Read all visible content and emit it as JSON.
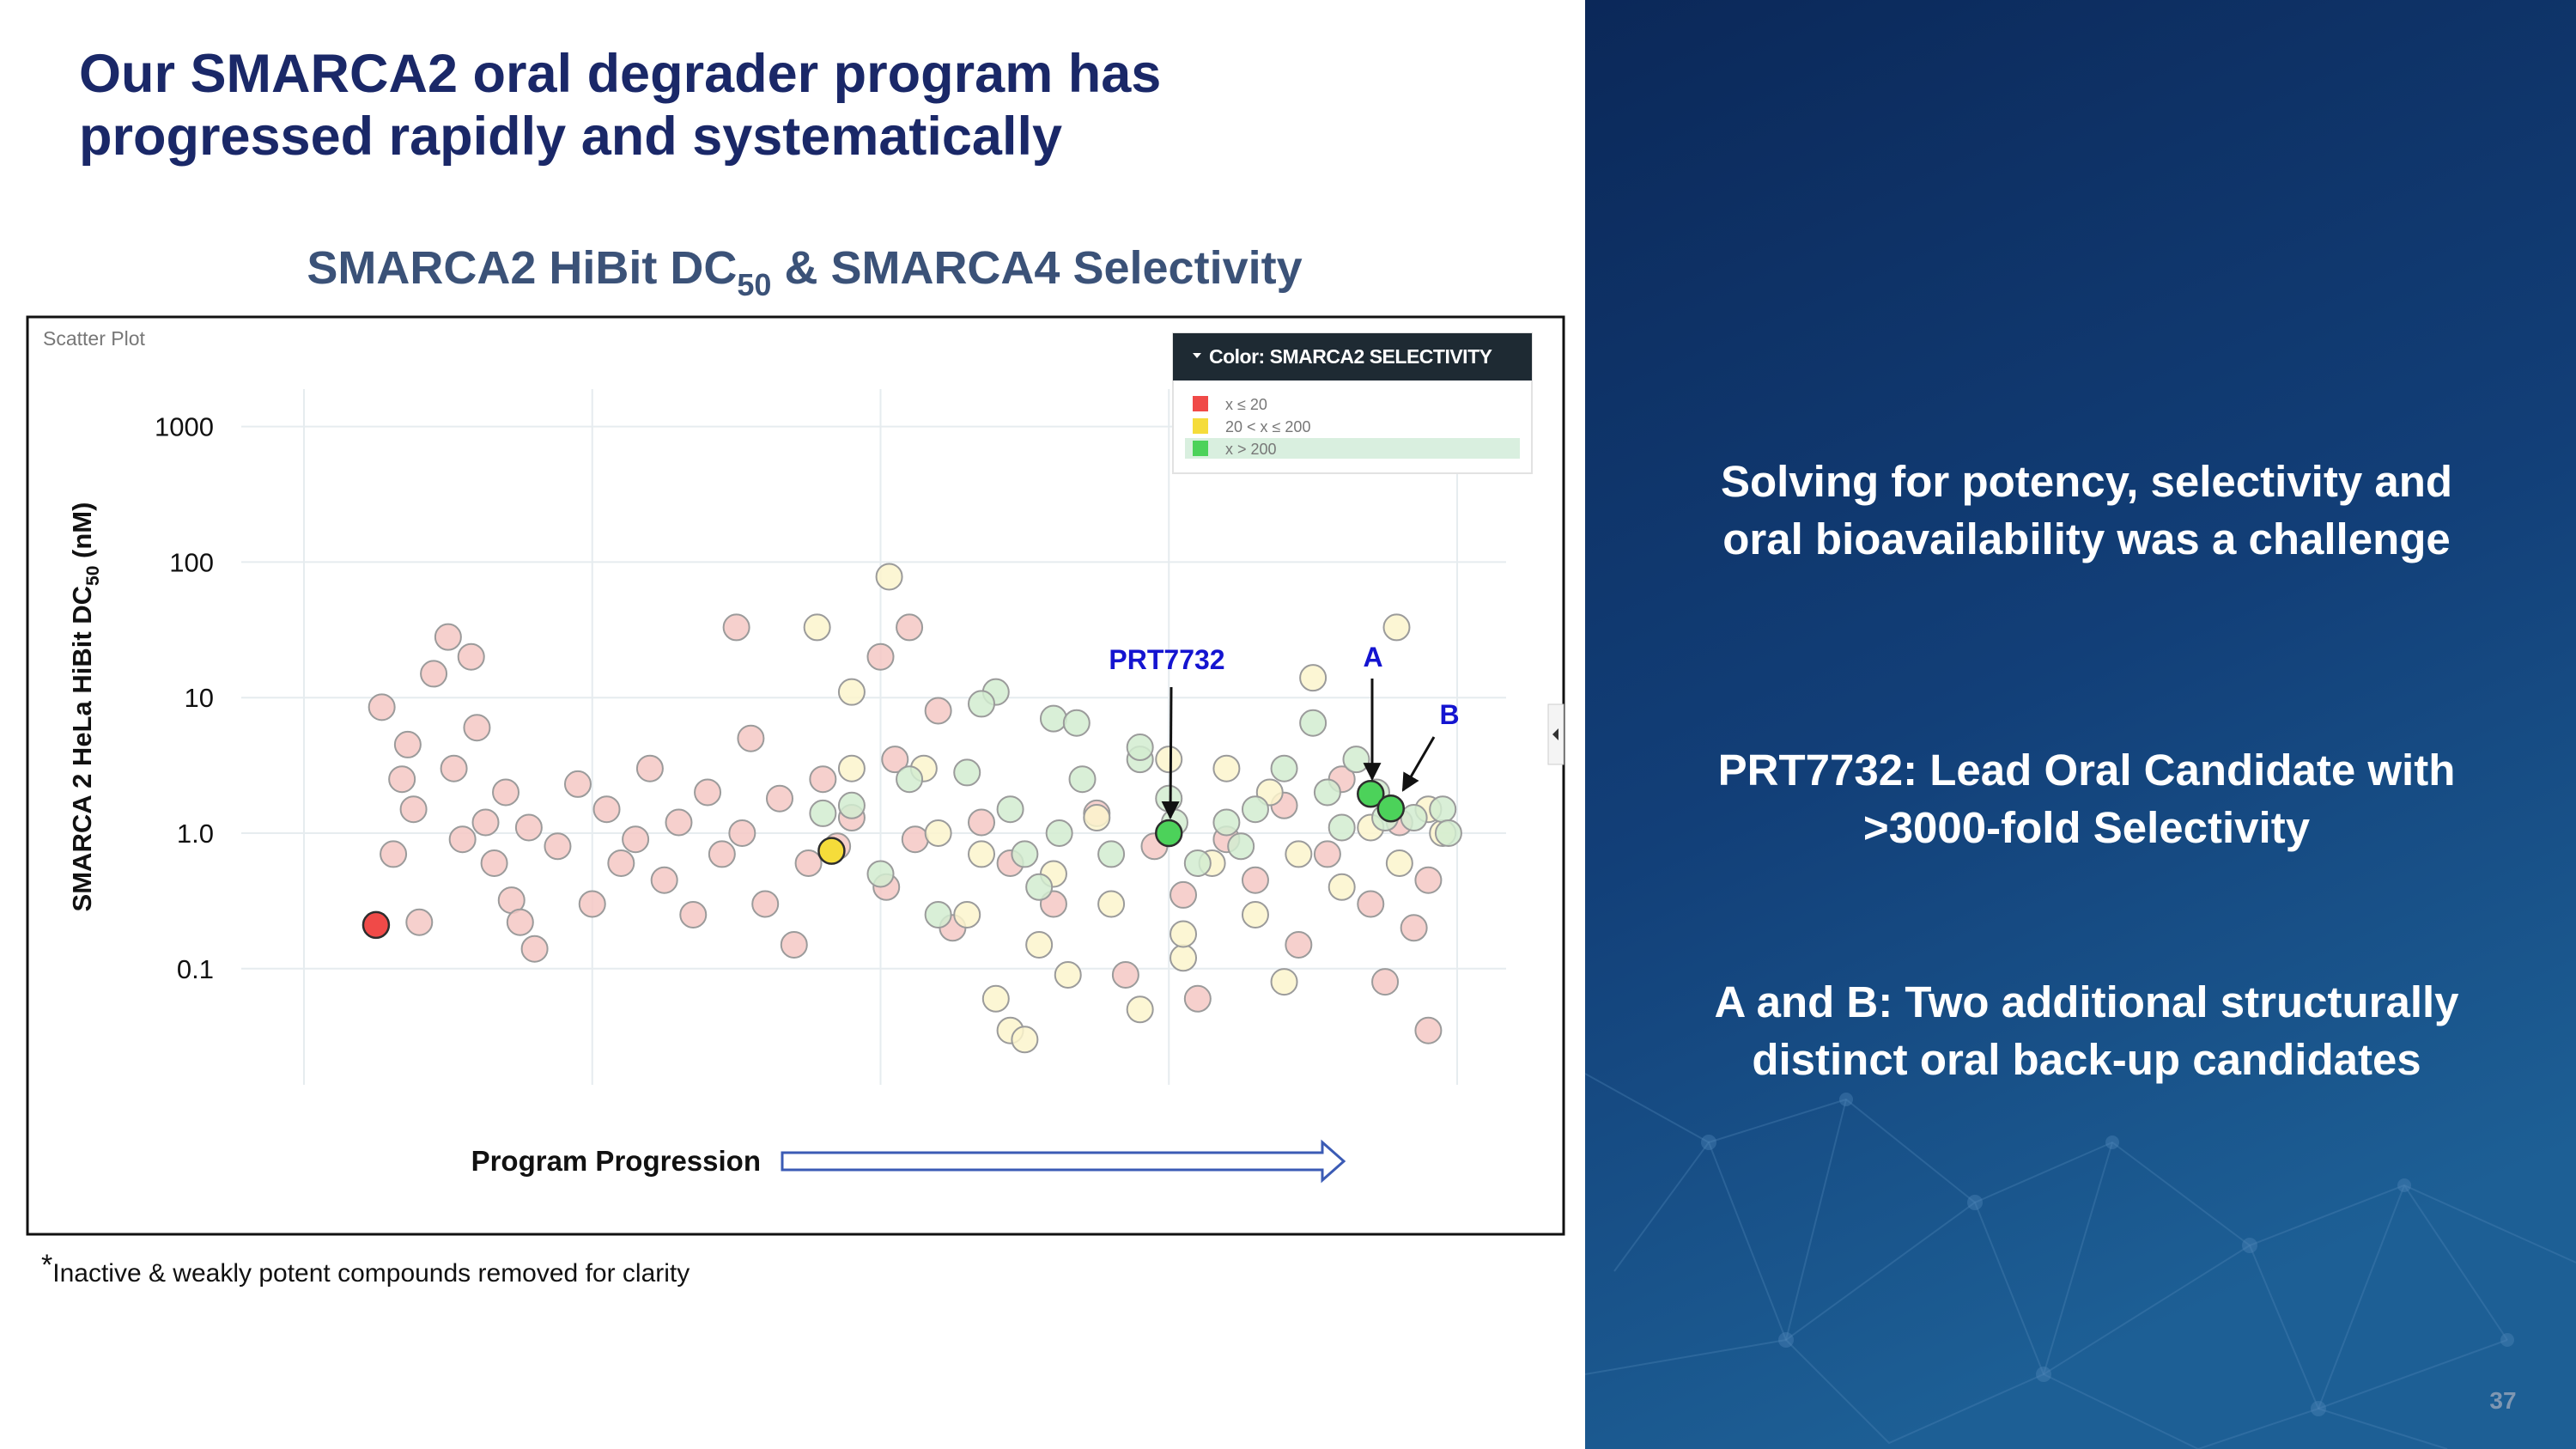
{
  "title_lines": [
    "Our SMARCA2 oral degrader program has",
    "progressed rapidly and systematically"
  ],
  "chart_data": {
    "type": "scatter",
    "title": "SMARCA2 HiBit DC",
    "title_subscript": "50",
    "title_suffix": " & SMARCA4 Selectivity",
    "panel_label": "Scatter Plot",
    "y_label": "SMARCA 2 HeLa HiBit DC",
    "y_label_subscript": "50",
    "y_label_suffix": " (nM)",
    "x_label": "Program Progression",
    "yscale": "log",
    "grid": true,
    "ylim": [
      0.0139,
      1890
    ],
    "yticks": [
      1000,
      100,
      10,
      {
        "value": 1,
        "label": "1.0"
      },
      0.1
    ],
    "xlim": [
      0,
      4
    ],
    "legend_title": "Color: SMARCA2 SELECTIVITY",
    "legend_position": "upper right",
    "series": [
      {
        "name": "x ≤ 20",
        "color": "#f04a48",
        "faded_color": "#f5c8c4",
        "highlighted": [
          68
        ],
        "x": [
          0.27,
          0.31,
          0.34,
          0.36,
          0.38,
          0.4,
          0.45,
          0.5,
          0.52,
          0.55,
          0.58,
          0.6,
          0.63,
          0.66,
          0.7,
          0.72,
          0.75,
          0.78,
          0.8,
          0.88,
          0.95,
          1.0,
          1.05,
          1.1,
          1.15,
          1.2,
          1.25,
          1.3,
          1.35,
          1.4,
          1.45,
          1.5,
          1.52,
          1.55,
          1.6,
          1.65,
          1.7,
          1.75,
          1.8,
          1.85,
          1.9,
          2.0,
          2.02,
          2.05,
          2.1,
          2.12,
          2.2,
          2.25,
          2.35,
          2.45,
          2.6,
          2.75,
          2.85,
          2.95,
          3.05,
          3.1,
          3.2,
          3.3,
          3.4,
          3.45,
          3.55,
          3.6,
          3.7,
          3.75,
          3.8,
          3.85,
          3.9,
          3.9,
          0.25
        ],
        "values": [
          8.5,
          0.7,
          2.5,
          4.5,
          1.5,
          0.22,
          15,
          28,
          3,
          0.9,
          20,
          6,
          1.2,
          0.6,
          2,
          0.32,
          0.22,
          1.1,
          0.14,
          0.8,
          2.3,
          0.3,
          1.5,
          0.6,
          0.9,
          3,
          0.45,
          1.2,
          0.25,
          2,
          0.7,
          33,
          1.0,
          5,
          0.3,
          1.8,
          0.15,
          0.6,
          2.5,
          0.8,
          1.3,
          20,
          0.4,
          3.5,
          33,
          0.9,
          8,
          0.2,
          1.2,
          0.6,
          0.3,
          1.4,
          0.09,
          0.8,
          0.35,
          0.06,
          0.9,
          0.45,
          1.6,
          0.15,
          0.7,
          2.5,
          0.3,
          0.08,
          1.2,
          0.2,
          0.035,
          0.45,
          0.21
        ]
      },
      {
        "name": "20 < x ≤ 200",
        "color": "#f5dc3a",
        "faded_color": "#fbf4cc",
        "highlighted": [
          33
        ],
        "x": [
          1.78,
          2.03,
          3.79,
          1.9,
          1.9,
          3.5,
          2.3,
          2.4,
          2.45,
          2.5,
          2.55,
          2.6,
          2.65,
          2.8,
          2.75,
          2.9,
          3.0,
          3.05,
          3.15,
          3.2,
          3.3,
          3.4,
          3.45,
          3.6,
          3.7,
          3.8,
          3.9,
          3.95,
          2.2,
          2.15,
          2.35,
          3.35,
          3.05,
          1.83
        ],
        "values": [
          33,
          78,
          33,
          3,
          11,
          14,
          0.25,
          0.06,
          0.035,
          0.03,
          0.15,
          0.5,
          0.09,
          0.3,
          1.3,
          0.05,
          3.5,
          0.12,
          0.6,
          3,
          0.25,
          0.08,
          0.7,
          0.4,
          1.1,
          0.6,
          1.5,
          1.0,
          1.0,
          3,
          0.7,
          2,
          0.18,
          0.74
        ]
      },
      {
        "name": "x > 200",
        "color": "#4cd25a",
        "faded_color": "#d2ecd0",
        "highlighted": [
          34,
          35,
          36
        ],
        "x": [
          2.4,
          2.6,
          2.68,
          2.9,
          2.9,
          3.0,
          3.1,
          3.2,
          3.3,
          3.4,
          3.5,
          3.55,
          3.6,
          3.65,
          3.72,
          3.75,
          3.85,
          3.95,
          3.97,
          1.8,
          1.9,
          2.0,
          2.1,
          2.2,
          2.3,
          2.35,
          2.45,
          2.5,
          2.55,
          2.62,
          2.7,
          2.8,
          3.25,
          3.02,
          3.0,
          3.7,
          3.77
        ],
        "values": [
          11,
          7,
          6.5,
          3.5,
          4.3,
          1.8,
          0.6,
          1.2,
          1.5,
          3,
          6.5,
          2,
          1.1,
          3.5,
          2,
          1.3,
          1.3,
          1.5,
          1.0,
          1.4,
          1.6,
          0.5,
          2.5,
          0.25,
          2.8,
          9,
          1.5,
          0.7,
          0.4,
          1.0,
          2.5,
          0.7,
          0.8,
          1.2,
          1.0,
          1.95,
          1.52
        ]
      }
    ],
    "annotations": [
      "PRT7732",
      "A",
      "B"
    ]
  },
  "footnote_mark": "*",
  "footnote": "Inactive & weakly potent compounds removed for clarity",
  "panel_texts": [
    [
      "Solving for potency, selectivity and",
      "oral bioavailability was a challenge"
    ],
    [
      "PRT7732: Lead Oral Candidate with",
      ">3000-fold Selectivity"
    ],
    [
      "A and B: Two additional structurally",
      "distinct oral back-up candidates"
    ]
  ],
  "page_number": "37"
}
